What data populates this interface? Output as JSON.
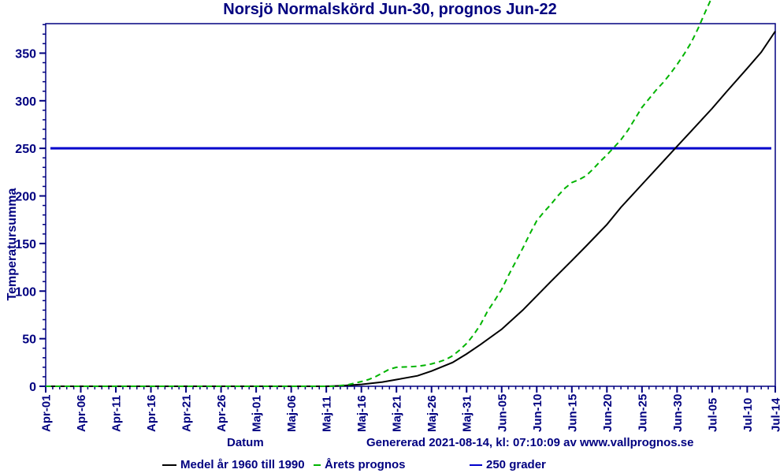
{
  "title": "Norsjö Normalskörd Jun-30, prognos Jun-22",
  "footer": {
    "xlabel": "Datum",
    "generated": "Genererad 2021-08-14, kl: 07:10:09 av www.vallprognos.se"
  },
  "legend": {
    "medel": "Medel år 1960 till 1990",
    "prognos": "Årets prognos",
    "grader": "250 grader"
  },
  "colors": {
    "text": "#000080",
    "frame": "#000080",
    "medel_line": "#000000",
    "prognos_line": "#00b400",
    "reference_line": "#0000cc",
    "background": "#ffffff"
  },
  "chart_data": {
    "type": "line",
    "title": "Norsjö Normalskörd Jun-30, prognos Jun-22",
    "xlabel": "Datum",
    "ylabel": "Temperatursumma",
    "x_unit": "days since Apr-01",
    "xlim": [
      0,
      104
    ],
    "ylim": [
      0,
      381
    ],
    "grid": false,
    "legend_position": "bottom",
    "y_major_ticks": [
      0,
      50,
      100,
      150,
      200,
      250,
      300,
      350
    ],
    "y_minor_step": 10,
    "x_minor_step_days": 1,
    "x_major_ticks": [
      {
        "day": 0,
        "label": "Apr-01"
      },
      {
        "day": 5,
        "label": "Apr-06"
      },
      {
        "day": 10,
        "label": "Apr-11"
      },
      {
        "day": 15,
        "label": "Apr-16"
      },
      {
        "day": 20,
        "label": "Apr-21"
      },
      {
        "day": 25,
        "label": "Apr-26"
      },
      {
        "day": 30,
        "label": "Maj-01"
      },
      {
        "day": 35,
        "label": "Maj-06"
      },
      {
        "day": 40,
        "label": "Maj-11"
      },
      {
        "day": 45,
        "label": "Maj-16"
      },
      {
        "day": 50,
        "label": "Maj-21"
      },
      {
        "day": 55,
        "label": "Maj-26"
      },
      {
        "day": 60,
        "label": "Maj-31"
      },
      {
        "day": 65,
        "label": "Jun-05"
      },
      {
        "day": 70,
        "label": "Jun-10"
      },
      {
        "day": 75,
        "label": "Jun-15"
      },
      {
        "day": 80,
        "label": "Jun-20"
      },
      {
        "day": 85,
        "label": "Jun-25"
      },
      {
        "day": 90,
        "label": "Jun-30"
      },
      {
        "day": 95,
        "label": "Jul-05"
      },
      {
        "day": 100,
        "label": "Jul-10"
      },
      {
        "day": 104,
        "label": "Jul-14"
      }
    ],
    "reference_line": {
      "value": 250,
      "label": "250 grader",
      "color": "#0000cc"
    },
    "series": [
      {
        "name": "Medel år 1960 till 1990",
        "color": "#000000",
        "dash": "solid",
        "points": [
          [
            0,
            0
          ],
          [
            10,
            0
          ],
          [
            20,
            0
          ],
          [
            30,
            0
          ],
          [
            38,
            0
          ],
          [
            40,
            0
          ],
          [
            42,
            0.5
          ],
          [
            45,
            2
          ],
          [
            48,
            4.5
          ],
          [
            50,
            7
          ],
          [
            53,
            11
          ],
          [
            55,
            16
          ],
          [
            58,
            25
          ],
          [
            60,
            34
          ],
          [
            62,
            44
          ],
          [
            65,
            60
          ],
          [
            68,
            80
          ],
          [
            70,
            95
          ],
          [
            72,
            110
          ],
          [
            75,
            132
          ],
          [
            77,
            147
          ],
          [
            80,
            170
          ],
          [
            82,
            188
          ],
          [
            85,
            212
          ],
          [
            87,
            228
          ],
          [
            90,
            252
          ],
          [
            92,
            268
          ],
          [
            95,
            292
          ],
          [
            97,
            309
          ],
          [
            100,
            334
          ],
          [
            102,
            351
          ],
          [
            104,
            373
          ]
        ]
      },
      {
        "name": "Årets prognos",
        "color": "#00b400",
        "dash": "dashed",
        "points": [
          [
            0,
            0
          ],
          [
            10,
            0
          ],
          [
            20,
            0
          ],
          [
            30,
            0
          ],
          [
            38,
            0
          ],
          [
            41,
            0
          ],
          [
            43,
            1.5
          ],
          [
            45,
            5
          ],
          [
            46,
            7
          ],
          [
            47,
            10
          ],
          [
            48,
            14
          ],
          [
            49,
            18
          ],
          [
            50,
            20
          ],
          [
            52,
            20.5
          ],
          [
            53,
            21
          ],
          [
            54,
            22
          ],
          [
            55,
            23.5
          ],
          [
            56,
            25.5
          ],
          [
            57,
            28
          ],
          [
            58,
            32
          ],
          [
            59,
            38
          ],
          [
            60,
            45
          ],
          [
            61,
            54
          ],
          [
            62,
            65
          ],
          [
            63,
            79
          ],
          [
            64,
            90
          ],
          [
            65,
            102
          ],
          [
            66,
            117
          ],
          [
            67,
            131
          ],
          [
            68,
            145
          ],
          [
            69,
            160
          ],
          [
            70,
            174
          ],
          [
            71,
            183
          ],
          [
            72,
            191
          ],
          [
            73,
            200
          ],
          [
            74,
            208
          ],
          [
            75,
            214
          ],
          [
            76,
            217
          ],
          [
            77,
            221
          ],
          [
            78,
            228
          ],
          [
            79,
            236
          ],
          [
            80,
            243
          ],
          [
            81,
            251
          ],
          [
            82,
            259
          ],
          [
            83,
            269
          ],
          [
            84,
            281
          ],
          [
            85,
            293
          ],
          [
            86,
            302
          ],
          [
            87,
            311
          ],
          [
            88,
            319
          ],
          [
            89,
            328
          ],
          [
            90,
            338
          ],
          [
            91,
            349
          ],
          [
            92,
            361
          ],
          [
            93,
            376
          ],
          [
            94,
            393
          ],
          [
            94.8,
            406
          ]
        ]
      }
    ]
  }
}
